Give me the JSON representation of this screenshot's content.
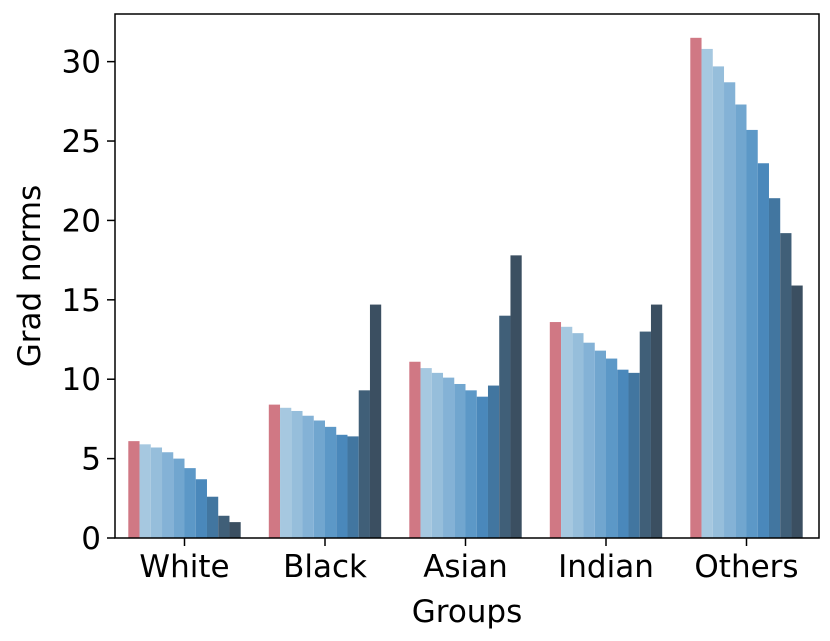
{
  "chart_data": {
    "type": "bar",
    "title": "",
    "xlabel": "Groups",
    "ylabel": "Grad norms",
    "categories": [
      "White",
      "Black",
      "Asian",
      "Indian",
      "Others"
    ],
    "ylim": [
      0,
      33
    ],
    "yticks": [
      0,
      5,
      10,
      15,
      20,
      25,
      30
    ],
    "grid": false,
    "legend": "none",
    "series_colors": [
      "#d07884",
      "#a6c8e0",
      "#96bedb",
      "#84b2d6",
      "#71a6cf",
      "#5c98c7",
      "#4a88bb",
      "#4276a0",
      "#405f78",
      "#3b4f61",
      "#36434f"
    ],
    "series": [
      {
        "values": [
          6.1,
          8.4,
          11.1,
          13.6,
          31.5
        ]
      },
      {
        "values": [
          5.9,
          8.2,
          10.7,
          13.3,
          30.8
        ]
      },
      {
        "values": [
          5.7,
          8.0,
          10.4,
          12.9,
          29.7
        ]
      },
      {
        "values": [
          5.4,
          7.7,
          10.1,
          12.3,
          28.7
        ]
      },
      {
        "values": [
          5.0,
          7.4,
          9.7,
          11.8,
          27.3
        ]
      },
      {
        "values": [
          4.4,
          7.0,
          9.3,
          11.3,
          25.7
        ]
      },
      {
        "values": [
          3.7,
          6.5,
          8.9,
          10.6,
          23.6
        ]
      },
      {
        "values": [
          2.6,
          6.4,
          9.6,
          10.4,
          21.4
        ]
      },
      {
        "values": [
          1.4,
          9.3,
          14.0,
          13.0,
          19.2
        ]
      },
      {
        "values": [
          1.0,
          14.7,
          17.8,
          14.7,
          15.9
        ]
      }
    ]
  }
}
